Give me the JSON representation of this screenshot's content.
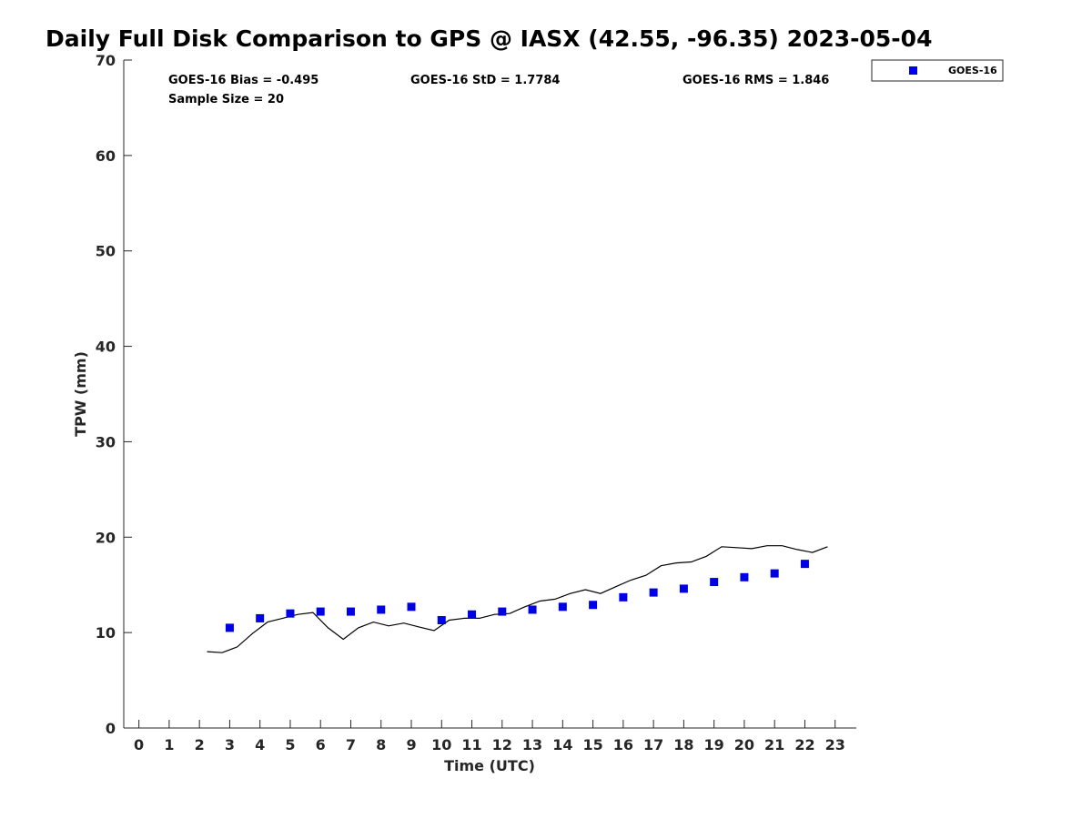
{
  "colors": {
    "goes": "#0000e6",
    "gps_line": "#000000",
    "axis": "#262626"
  },
  "chart_data": {
    "type": "scatter",
    "title": "Daily Full Disk Comparison to GPS @ IASX (42.55, -96.35) 2023-05-04",
    "xlabel": "Time (UTC)",
    "ylabel": "TPW (mm)",
    "xlim": [
      -0.5,
      23.7
    ],
    "ylim": [
      0,
      70
    ],
    "xticks": [
      0,
      1,
      2,
      3,
      4,
      5,
      6,
      7,
      8,
      9,
      10,
      11,
      12,
      13,
      14,
      15,
      16,
      17,
      18,
      19,
      20,
      21,
      22,
      23
    ],
    "yticks": [
      0,
      10,
      20,
      30,
      40,
      50,
      60,
      70
    ],
    "grid": false,
    "legend_position": "top-right-outside",
    "stats": {
      "bias": "GOES-16 Bias = -0.495",
      "std": "GOES-16 StD = 1.7784",
      "rms": "GOES-16 RMS = 1.846",
      "sample": "Sample Size = 20"
    },
    "series": [
      {
        "name": "GOES-16",
        "kind": "markers",
        "x": [
          3,
          4,
          5,
          6,
          7,
          8,
          9,
          10,
          11,
          12,
          13,
          14,
          15,
          16,
          17,
          18,
          19,
          20,
          21,
          22
        ],
        "y": [
          10.5,
          11.5,
          12.0,
          12.2,
          12.2,
          12.4,
          12.7,
          11.3,
          11.9,
          12.2,
          12.4,
          12.7,
          12.9,
          13.7,
          14.2,
          14.6,
          15.3,
          15.8,
          16.2,
          17.2
        ]
      },
      {
        "kind": "line",
        "x": [
          2.25,
          2.75,
          3.25,
          3.75,
          4.25,
          4.75,
          5.25,
          5.75,
          6.25,
          6.75,
          7.25,
          7.75,
          8.25,
          8.75,
          9.25,
          9.75,
          10.25,
          10.75,
          11.25,
          11.75,
          12.25,
          12.75,
          13.25,
          13.75,
          14.25,
          14.75,
          15.25,
          15.75,
          16.25,
          16.75,
          17.25,
          17.75,
          18.25,
          18.75,
          19.25,
          19.75,
          20.25,
          20.75,
          21.25,
          21.75,
          22.25,
          22.75
        ],
        "y": [
          8.0,
          7.9,
          8.5,
          9.9,
          11.1,
          11.5,
          11.9,
          12.1,
          10.5,
          9.3,
          10.5,
          11.1,
          10.7,
          11.0,
          10.6,
          10.2,
          11.3,
          11.5,
          11.5,
          11.9,
          12.0,
          12.7,
          13.3,
          13.5,
          14.1,
          14.5,
          14.1,
          14.8,
          15.5,
          16.0,
          17.0,
          17.3,
          17.4,
          18.0,
          19.0,
          18.9,
          18.8,
          19.1,
          19.1,
          18.7,
          18.4,
          19.0
        ]
      }
    ]
  }
}
